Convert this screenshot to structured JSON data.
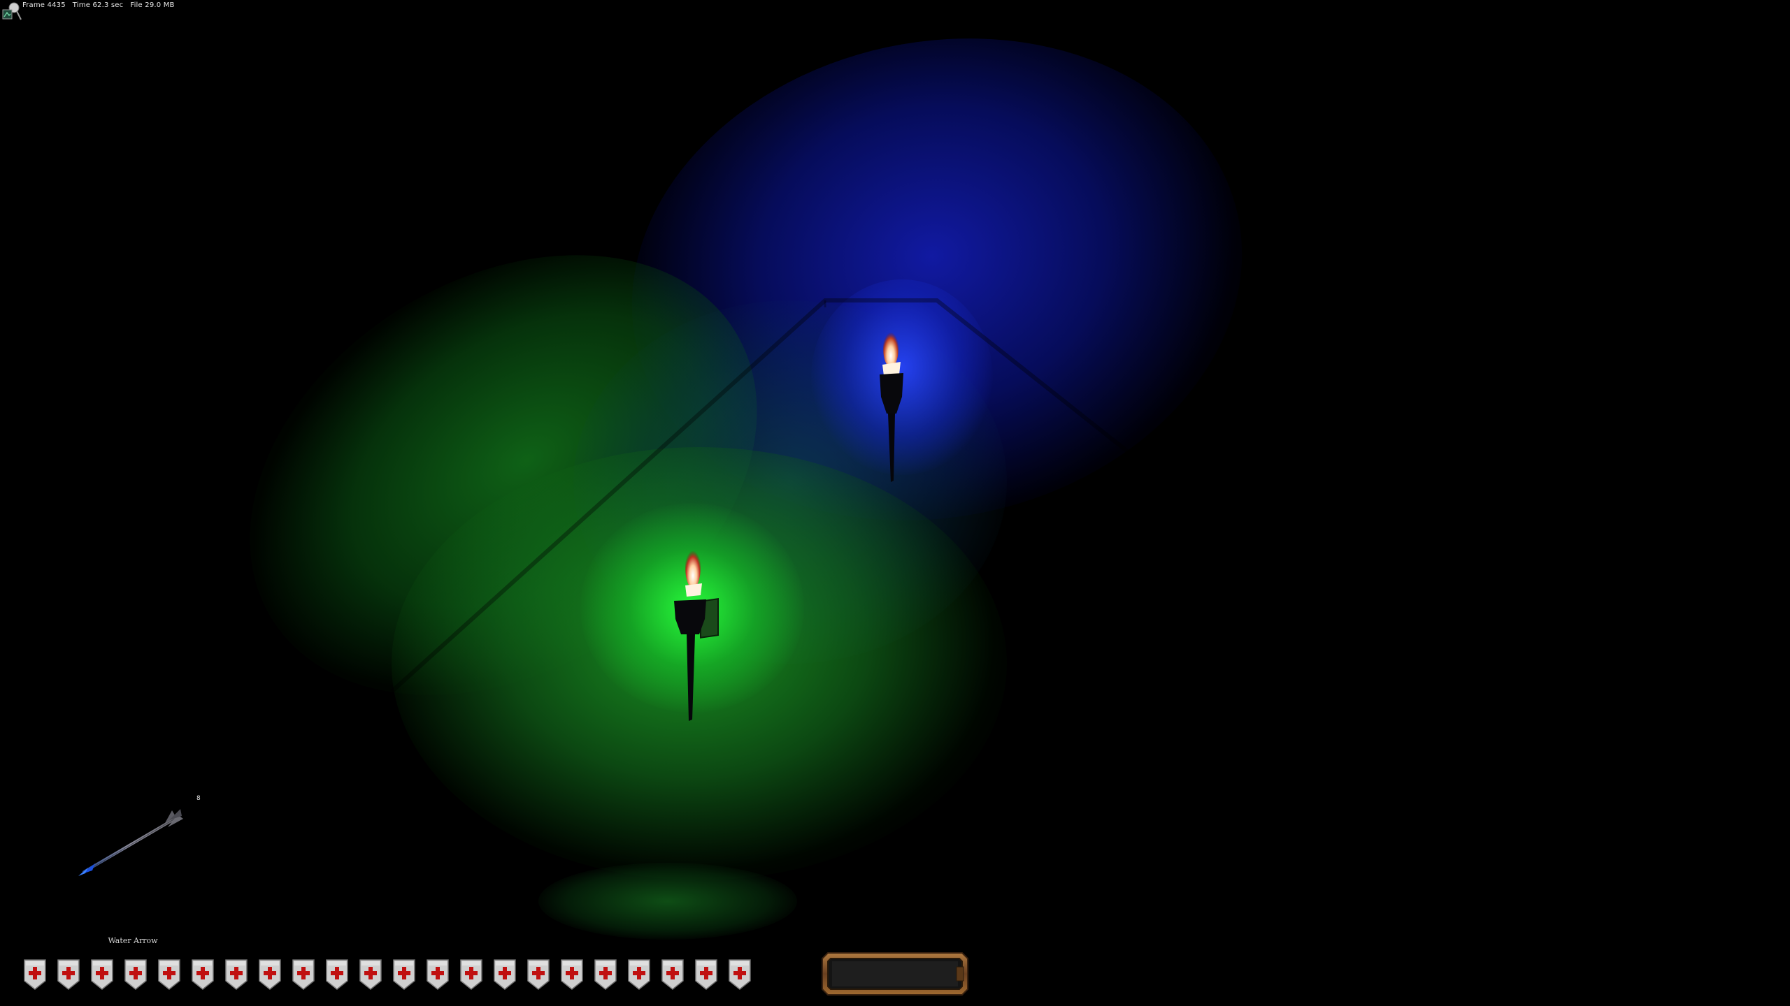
{
  "debug": {
    "icon": "debug-stats-icon",
    "frame_label": "Frame 4435",
    "time_label": "Time 62.3 sec",
    "file_label": "File 29.0 MB"
  },
  "scene": {
    "blue_light_color": "#1a2ad0",
    "green_light_color": "#22d02a",
    "torches": [
      {
        "name": "blue-torch",
        "color": "blue"
      },
      {
        "name": "green-torch",
        "color": "green"
      }
    ]
  },
  "hud": {
    "weapon": {
      "icon": "water-arrow-icon",
      "count": "8",
      "name": "Water Arrow"
    },
    "health": {
      "icon": "health-shield-icon",
      "current": 22,
      "max": 22,
      "shield_color": "#d0d0d0",
      "cross_color": "#c01010"
    },
    "inventory": {
      "icon": "inventory-frame",
      "item": ""
    }
  }
}
